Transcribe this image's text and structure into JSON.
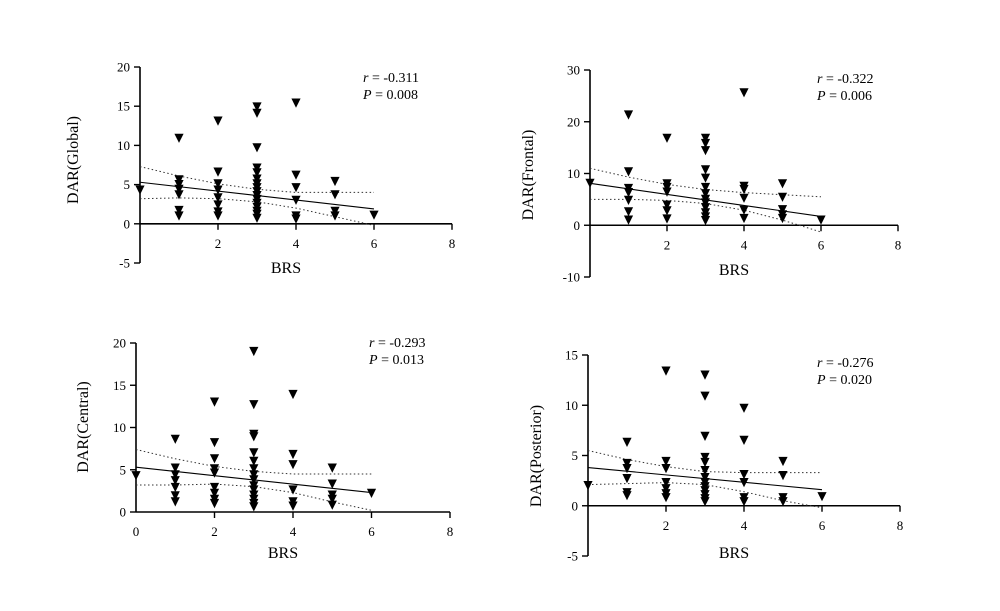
{
  "chart_data": [
    {
      "type": "scatter",
      "xlabel": "BRS",
      "ylabel": "DAR(Global)",
      "xlim": [
        0,
        8
      ],
      "ylim": [
        -5,
        20
      ],
      "xticks": [
        2,
        4,
        6,
        8
      ],
      "yticks": [
        -5,
        0,
        5,
        10,
        15,
        20
      ],
      "stats": {
        "r_label": "r",
        "r_value": "= -0.311",
        "p_label": "P",
        "p_value": "= 0.008"
      },
      "points": [
        [
          0,
          4.3
        ],
        [
          1,
          10.9
        ],
        [
          1,
          5.6
        ],
        [
          1,
          5.0
        ],
        [
          1,
          4.4
        ],
        [
          1,
          3.7
        ],
        [
          1,
          1.7
        ],
        [
          1,
          1.0
        ],
        [
          2,
          13.1
        ],
        [
          2,
          6.6
        ],
        [
          2,
          5.1
        ],
        [
          2,
          4.3
        ],
        [
          2,
          3.3
        ],
        [
          2,
          2.4
        ],
        [
          2,
          1.5
        ],
        [
          2,
          1.0
        ],
        [
          3,
          14.9
        ],
        [
          3,
          14.1
        ],
        [
          3,
          9.7
        ],
        [
          3,
          7.1
        ],
        [
          3,
          6.5
        ],
        [
          3,
          5.7
        ],
        [
          3,
          5.1
        ],
        [
          3,
          4.6
        ],
        [
          3,
          4.1
        ],
        [
          3,
          3.6
        ],
        [
          3,
          3.1
        ],
        [
          3,
          2.6
        ],
        [
          3,
          2.1
        ],
        [
          3,
          1.6
        ],
        [
          3,
          1.2
        ],
        [
          3,
          0.7
        ],
        [
          4,
          15.4
        ],
        [
          4,
          6.2
        ],
        [
          4,
          4.6
        ],
        [
          4,
          3.0
        ],
        [
          4,
          1.0
        ],
        [
          4,
          0.6
        ],
        [
          5,
          5.4
        ],
        [
          5,
          3.7
        ],
        [
          5,
          1.6
        ],
        [
          5,
          1.0
        ],
        [
          6,
          1.1
        ]
      ],
      "fit": {
        "x": [
          0,
          6
        ],
        "y": [
          5.3,
          1.9
        ]
      },
      "ci_upper": {
        "x": [
          0,
          1,
          2,
          3,
          4,
          5,
          6
        ],
        "y": [
          7.3,
          6.1,
          5.1,
          4.4,
          4.0,
          4.0,
          4.0
        ]
      },
      "ci_lower": {
        "x": [
          0,
          1,
          2,
          3,
          4,
          5,
          6
        ],
        "y": [
          3.2,
          3.3,
          3.2,
          2.8,
          2.0,
          0.9,
          -0.2
        ]
      }
    },
    {
      "type": "scatter",
      "xlabel": "BRS",
      "ylabel": "DAR(Frontal)",
      "xlim": [
        0,
        8
      ],
      "ylim": [
        -10,
        30
      ],
      "xticks": [
        2,
        4,
        6,
        8
      ],
      "yticks": [
        -10,
        0,
        10,
        20,
        30
      ],
      "stats": {
        "r_label": "r",
        "r_value": "= -0.322",
        "p_label": "P",
        "p_value": "= 0.006"
      },
      "points": [
        [
          0,
          8.1
        ],
        [
          1,
          21.3
        ],
        [
          1,
          10.3
        ],
        [
          1,
          7.1
        ],
        [
          1,
          6.3
        ],
        [
          1,
          4.8
        ],
        [
          1,
          2.6
        ],
        [
          1,
          1.0
        ],
        [
          2,
          16.8
        ],
        [
          2,
          8.0
        ],
        [
          2,
          7.3
        ],
        [
          2,
          6.4
        ],
        [
          2,
          3.9
        ],
        [
          2,
          2.8
        ],
        [
          2,
          1.2
        ],
        [
          3,
          16.8
        ],
        [
          3,
          15.8
        ],
        [
          3,
          14.4
        ],
        [
          3,
          10.7
        ],
        [
          3,
          9.1
        ],
        [
          3,
          7.3
        ],
        [
          3,
          6.1
        ],
        [
          3,
          5.0
        ],
        [
          3,
          4.3
        ],
        [
          3,
          3.4
        ],
        [
          3,
          2.4
        ],
        [
          3,
          1.6
        ],
        [
          3,
          0.9
        ],
        [
          4,
          25.6
        ],
        [
          4,
          7.5
        ],
        [
          4,
          6.9
        ],
        [
          4,
          5.2
        ],
        [
          4,
          2.9
        ],
        [
          4,
          1.3
        ],
        [
          5,
          8.0
        ],
        [
          5,
          5.4
        ],
        [
          5,
          3.0
        ],
        [
          5,
          2.0
        ],
        [
          5,
          1.3
        ],
        [
          6,
          1.0
        ]
      ],
      "fit": {
        "x": [
          0,
          6
        ],
        "y": [
          8.1,
          1.7
        ]
      },
      "ci_upper": {
        "x": [
          0,
          1,
          2,
          3,
          4,
          5,
          6
        ],
        "y": [
          11.0,
          9.3,
          7.9,
          6.9,
          6.3,
          5.9,
          5.5
        ]
      },
      "ci_lower": {
        "x": [
          0,
          1,
          2,
          3,
          4,
          5,
          6
        ],
        "y": [
          5.0,
          5.0,
          4.8,
          4.2,
          2.9,
          1.0,
          -1.3
        ]
      }
    },
    {
      "type": "scatter",
      "xlabel": "BRS",
      "ylabel": "DAR(Central)",
      "xlim": [
        0,
        8
      ],
      "ylim": [
        0,
        20
      ],
      "xticks": [
        0,
        2,
        4,
        6,
        8
      ],
      "yticks": [
        0,
        5,
        10,
        15,
        20
      ],
      "stats": {
        "r_label": "r",
        "r_value": "= -0.293",
        "p_label": "P",
        "p_value": "= 0.013"
      },
      "points": [
        [
          0,
          4.3
        ],
        [
          1,
          8.6
        ],
        [
          1,
          5.2
        ],
        [
          1,
          4.4
        ],
        [
          1,
          3.7
        ],
        [
          1,
          2.9
        ],
        [
          1,
          1.9
        ],
        [
          1,
          1.2
        ],
        [
          2,
          13.0
        ],
        [
          2,
          8.2
        ],
        [
          2,
          6.3
        ],
        [
          2,
          5.1
        ],
        [
          2,
          4.6
        ],
        [
          2,
          2.9
        ],
        [
          2,
          2.2
        ],
        [
          2,
          1.5
        ],
        [
          2,
          1.0
        ],
        [
          3,
          19.0
        ],
        [
          3,
          12.7
        ],
        [
          3,
          9.2
        ],
        [
          3,
          8.9
        ],
        [
          3,
          7.0
        ],
        [
          3,
          6.0
        ],
        [
          3,
          5.1
        ],
        [
          3,
          4.4
        ],
        [
          3,
          3.8
        ],
        [
          3,
          3.1
        ],
        [
          3,
          2.6
        ],
        [
          3,
          2.0
        ],
        [
          3,
          1.5
        ],
        [
          3,
          1.0
        ],
        [
          3,
          0.6
        ],
        [
          4,
          13.9
        ],
        [
          4,
          6.8
        ],
        [
          4,
          5.6
        ],
        [
          4,
          2.6
        ],
        [
          4,
          1.2
        ],
        [
          4,
          0.7
        ],
        [
          5,
          5.2
        ],
        [
          5,
          3.3
        ],
        [
          5,
          2.0
        ],
        [
          5,
          1.5
        ],
        [
          5,
          0.8
        ],
        [
          6,
          2.2
        ]
      ],
      "fit": {
        "x": [
          0,
          6
        ],
        "y": [
          5.3,
          2.3
        ]
      },
      "ci_upper": {
        "x": [
          0,
          1,
          2,
          3,
          4,
          5,
          6
        ],
        "y": [
          7.4,
          6.3,
          5.4,
          4.8,
          4.5,
          4.5,
          4.5
        ]
      },
      "ci_lower": {
        "x": [
          0,
          1,
          2,
          3,
          4,
          5,
          6
        ],
        "y": [
          3.2,
          3.2,
          3.3,
          3.0,
          2.3,
          1.2,
          0.2
        ]
      }
    },
    {
      "type": "scatter",
      "xlabel": "BRS",
      "ylabel": "DAR(Posterior)",
      "xlim": [
        0,
        8
      ],
      "ylim": [
        -5,
        15
      ],
      "xticks": [
        2,
        4,
        6,
        8
      ],
      "yticks": [
        -5,
        0,
        5,
        10,
        15
      ],
      "stats": {
        "r_label": "r",
        "r_value": "= -0.276",
        "p_label": "P",
        "p_value": "= 0.020"
      },
      "points": [
        [
          0,
          2.0
        ],
        [
          1,
          6.3
        ],
        [
          1,
          4.2
        ],
        [
          1,
          3.7
        ],
        [
          1,
          2.7
        ],
        [
          1,
          1.3
        ],
        [
          1,
          1.0
        ],
        [
          2,
          13.4
        ],
        [
          2,
          4.4
        ],
        [
          2,
          3.7
        ],
        [
          2,
          2.3
        ],
        [
          2,
          1.7
        ],
        [
          2,
          1.2
        ],
        [
          2,
          0.8
        ],
        [
          3,
          13.0
        ],
        [
          3,
          10.9
        ],
        [
          3,
          6.9
        ],
        [
          3,
          4.8
        ],
        [
          3,
          4.3
        ],
        [
          3,
          3.5
        ],
        [
          3,
          2.8
        ],
        [
          3,
          2.3
        ],
        [
          3,
          1.9
        ],
        [
          3,
          1.5
        ],
        [
          3,
          1.1
        ],
        [
          3,
          0.7
        ],
        [
          3,
          0.4
        ],
        [
          4,
          9.7
        ],
        [
          4,
          6.5
        ],
        [
          4,
          3.1
        ],
        [
          4,
          2.3
        ],
        [
          4,
          0.8
        ],
        [
          4,
          0.4
        ],
        [
          5,
          4.4
        ],
        [
          5,
          3.0
        ],
        [
          5,
          0.8
        ],
        [
          5,
          0.4
        ],
        [
          6,
          0.9
        ]
      ],
      "fit": {
        "x": [
          0,
          6
        ],
        "y": [
          3.8,
          1.6
        ]
      },
      "ci_upper": {
        "x": [
          0,
          1,
          2,
          3,
          4,
          5,
          6
        ],
        "y": [
          5.5,
          4.6,
          3.9,
          3.4,
          3.3,
          3.3,
          3.3
        ]
      },
      "ci_lower": {
        "x": [
          0,
          1,
          2,
          3,
          4,
          5,
          6
        ],
        "y": [
          2.1,
          2.2,
          2.3,
          2.1,
          1.4,
          0.5,
          -0.2
        ]
      }
    }
  ]
}
